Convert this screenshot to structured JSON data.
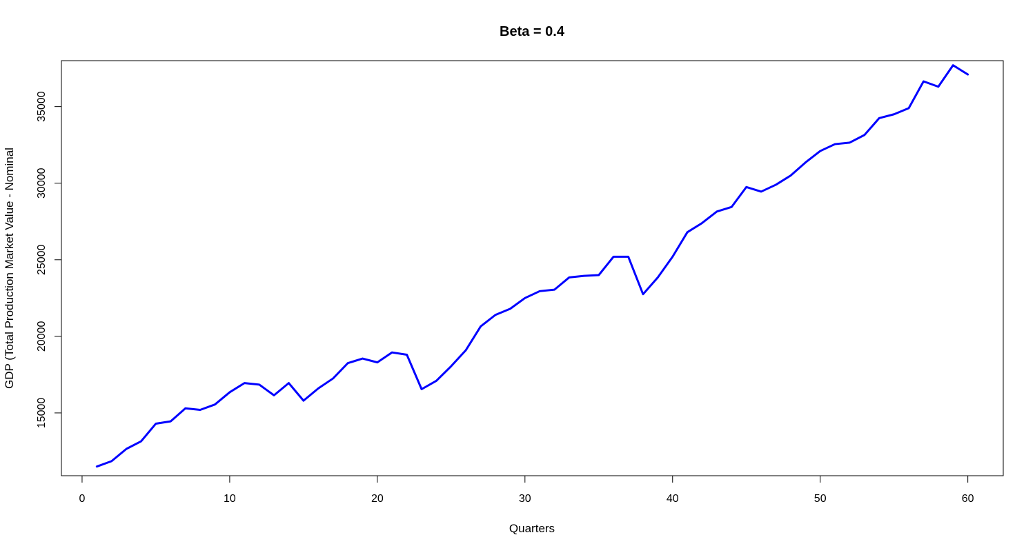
{
  "chart_data": {
    "type": "line",
    "title": "Beta = 0.4",
    "xlabel": "Quarters",
    "ylabel": "GDP (Total Production Market Value - Nominal",
    "xlim": [
      -1.4,
      62.4
    ],
    "ylim": [
      10900,
      38000
    ],
    "xticks": [
      0,
      10,
      20,
      30,
      40,
      50,
      60
    ],
    "xtick_labels": [
      "0",
      "10",
      "20",
      "30",
      "40",
      "50",
      "60"
    ],
    "yticks": [
      15000,
      20000,
      25000,
      30000,
      35000
    ],
    "ytick_labels": [
      "15000",
      "20000",
      "25000",
      "30000",
      "35000"
    ],
    "grid": false,
    "series": [
      {
        "color": "#0000ff",
        "x": [
          1,
          2,
          3,
          4,
          5,
          6,
          7,
          8,
          9,
          10,
          11,
          12,
          13,
          14,
          15,
          16,
          17,
          18,
          19,
          20,
          21,
          22,
          23,
          24,
          25,
          26,
          27,
          28,
          29,
          30,
          31,
          32,
          33,
          34,
          35,
          36,
          37,
          38,
          39,
          40,
          41,
          42,
          43,
          44,
          45,
          46,
          47,
          48,
          49,
          50,
          51,
          52,
          53,
          54,
          55,
          56,
          57,
          58,
          59,
          60
        ],
        "values": [
          11500,
          11850,
          12650,
          13150,
          14300,
          14450,
          15300,
          15200,
          15550,
          16350,
          16950,
          16850,
          16150,
          16950,
          15800,
          16600,
          17250,
          18250,
          18550,
          18300,
          18950,
          18800,
          16550,
          17100,
          18050,
          19100,
          20650,
          21400,
          21800,
          22500,
          22950,
          23050,
          23850,
          23950,
          24000,
          25200,
          25200,
          22750,
          23850,
          25200,
          26800,
          27400,
          28150,
          28450,
          29750,
          29450,
          29900,
          30500,
          31350,
          32100,
          32550,
          32650,
          33150,
          34250,
          34500,
          34900,
          36650,
          36300,
          37700,
          37100
        ]
      }
    ]
  }
}
